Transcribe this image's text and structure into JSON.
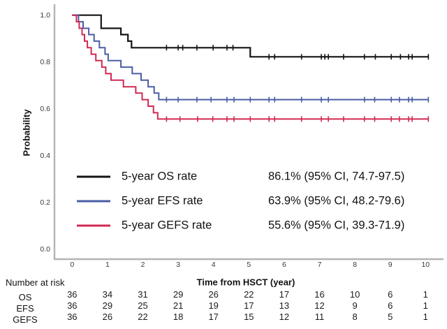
{
  "chart_data": {
    "type": "line",
    "subtype": "kaplan-meier-step",
    "title": "",
    "xlabel": "Time from HSCT (year)",
    "ylabel": "Probability",
    "xlim": [
      0,
      10.4
    ],
    "ylim": [
      0.0,
      1.0
    ],
    "grid": false,
    "x_ticks": [
      "0",
      "1",
      "2",
      "3",
      "4",
      "5",
      "6",
      "7",
      "8",
      "9",
      "10"
    ],
    "x_tick_values": [
      0,
      1,
      2,
      3,
      4,
      5,
      6,
      7,
      8,
      9,
      10
    ],
    "y_ticks": [
      "0.0",
      "0.2",
      "0.4",
      "0.6",
      "0.8",
      "1.0"
    ],
    "y_tick_values": [
      0.0,
      0.2,
      0.4,
      0.6,
      0.8,
      1.0
    ],
    "series": [
      {
        "name": "OS",
        "color": "#141414",
        "start": [
          0,
          1.0
        ],
        "steps": [
          [
            0.82,
            0.944
          ],
          [
            1.38,
            0.917
          ],
          [
            1.58,
            0.889
          ],
          [
            1.68,
            0.861
          ],
          [
            5.04,
            0.822
          ]
        ],
        "end_time": 10.08,
        "censor_times": [
          2.67,
          3.0,
          3.13,
          3.53,
          3.99,
          4.38,
          4.55,
          5.57,
          5.73,
          6.49,
          7.05,
          7.15,
          7.25,
          7.68,
          8.27,
          8.58,
          9.03,
          9.29,
          9.52,
          9.62,
          10.08
        ]
      },
      {
        "name": "EFS",
        "color": "#4a5da4",
        "start": [
          0,
          1.0
        ],
        "steps": [
          [
            0.18,
            0.972
          ],
          [
            0.31,
            0.944
          ],
          [
            0.47,
            0.917
          ],
          [
            0.62,
            0.889
          ],
          [
            0.77,
            0.861
          ],
          [
            0.93,
            0.833
          ],
          [
            1.02,
            0.806
          ],
          [
            1.38,
            0.778
          ],
          [
            1.7,
            0.75
          ],
          [
            1.95,
            0.722
          ],
          [
            2.15,
            0.694
          ],
          [
            2.32,
            0.667
          ],
          [
            2.45,
            0.639
          ]
        ],
        "end_time": 10.08,
        "censor_times": [
          2.67,
          3.0,
          3.53,
          3.93,
          4.38,
          4.58,
          5.04,
          5.57,
          5.73,
          6.49,
          7.05,
          7.25,
          8.27,
          8.56,
          9.03,
          9.26,
          9.52,
          9.62,
          10.08
        ]
      },
      {
        "name": "GEFS",
        "color": "#d02a52",
        "start": [
          0,
          1.0
        ],
        "steps": [
          [
            0.12,
            0.972
          ],
          [
            0.2,
            0.944
          ],
          [
            0.28,
            0.917
          ],
          [
            0.35,
            0.889
          ],
          [
            0.43,
            0.861
          ],
          [
            0.54,
            0.833
          ],
          [
            0.67,
            0.806
          ],
          [
            0.84,
            0.778
          ],
          [
            0.95,
            0.75
          ],
          [
            1.1,
            0.722
          ],
          [
            1.45,
            0.694
          ],
          [
            1.8,
            0.667
          ],
          [
            1.98,
            0.639
          ],
          [
            2.15,
            0.611
          ],
          [
            2.3,
            0.583
          ],
          [
            2.42,
            0.556
          ]
        ],
        "end_time": 10.08,
        "censor_times": [
          2.67,
          3.05,
          3.55,
          3.98,
          4.38,
          4.58,
          5.04,
          5.57,
          5.73,
          6.49,
          7.05,
          7.25,
          7.68,
          8.27,
          8.56,
          9.03,
          9.26,
          9.52,
          9.62,
          10.08
        ]
      }
    ],
    "legend_position": "inside-center",
    "legend": [
      {
        "label": "5-year OS rate",
        "value": "86.1% (95% CI, 74.7-97.5)",
        "color": "#141414"
      },
      {
        "label": "5-year EFS rate",
        "value": "63.9% (95% CI, 48.2-79.6)",
        "color": "#4a5da4"
      },
      {
        "label": "5-year GEFS rate",
        "value": "55.6% (95% CI, 39.3-71.9)",
        "color": "#d02a52"
      }
    ]
  },
  "risk_table": {
    "title": "Number at risk",
    "time_points": [
      0,
      1,
      2,
      3,
      4,
      5,
      6,
      7,
      8,
      9,
      10
    ],
    "rows": [
      {
        "label": "OS",
        "values": [
          36,
          34,
          31,
          29,
          26,
          22,
          17,
          16,
          10,
          6,
          1
        ]
      },
      {
        "label": "EFS",
        "values": [
          36,
          29,
          25,
          21,
          19,
          17,
          13,
          12,
          9,
          6,
          1
        ]
      },
      {
        "label": "GEFS",
        "values": [
          36,
          26,
          22,
          18,
          17,
          15,
          12,
          11,
          8,
          5,
          1
        ]
      }
    ]
  },
  "colors": {
    "axis": "#b3b3b3",
    "tick_text": "#3a3a3a",
    "risk_text": "#1c1c1c"
  }
}
